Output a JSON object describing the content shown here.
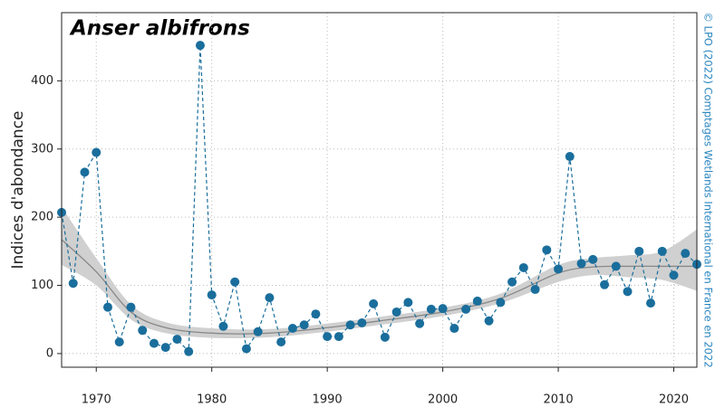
{
  "chart_data": {
    "type": "line",
    "title": "Anser albifrons",
    "y_label": "Indices d'abondance",
    "credit": "© LPO (2022) Comptages Wetlands International en France en 2022",
    "x": [
      1967,
      1968,
      1969,
      1970,
      1971,
      1972,
      1973,
      1974,
      1975,
      1976,
      1977,
      1978,
      1979,
      1980,
      1981,
      1982,
      1983,
      1984,
      1985,
      1986,
      1987,
      1988,
      1989,
      1990,
      1991,
      1992,
      1993,
      1994,
      1995,
      1996,
      1997,
      1998,
      1999,
      2000,
      2001,
      2002,
      2003,
      2004,
      2005,
      2006,
      2007,
      2008,
      2009,
      2010,
      2011,
      2012,
      2013,
      2014,
      2015,
      2016,
      2017,
      2018,
      2019,
      2020,
      2021,
      2022
    ],
    "values": [
      207,
      103,
      266,
      295,
      68,
      17,
      68,
      34,
      15,
      9,
      21,
      3,
      452,
      86,
      40,
      105,
      7,
      32,
      82,
      17,
      37,
      42,
      58,
      25,
      25,
      42,
      45,
      73,
      24,
      61,
      75,
      44,
      65,
      66,
      37,
      65,
      77,
      48,
      75,
      105,
      126,
      94,
      152,
      124,
      289,
      132,
      138,
      101,
      128,
      91,
      150,
      74,
      150,
      115,
      147,
      131
    ],
    "color": "#1a6e9c",
    "trend": {
      "color": "#888888",
      "band_color": "#d0d0d0",
      "x": [
        1967,
        1970,
        1973,
        1976,
        1980,
        1985,
        1990,
        1995,
        2000,
        2005,
        2010,
        2013,
        2016,
        2019,
        2022
      ],
      "values": [
        167,
        120,
        61,
        38,
        30,
        30,
        38,
        49,
        61,
        81,
        118,
        127,
        128,
        128,
        128
      ],
      "lower": [
        130,
        100,
        50,
        30,
        23,
        24,
        32,
        43,
        55,
        74,
        105,
        115,
        112,
        108,
        92
      ],
      "upper": [
        215,
        140,
        72,
        46,
        37,
        36,
        44,
        55,
        67,
        88,
        130,
        140,
        144,
        150,
        182
      ]
    },
    "xlim": [
      1967,
      2022
    ],
    "xticks": [
      1970,
      1980,
      1990,
      2000,
      2010,
      2020
    ],
    "ylim": [
      -20,
      500
    ],
    "yticks": [
      0,
      100,
      200,
      300,
      400
    ],
    "grid": true
  }
}
